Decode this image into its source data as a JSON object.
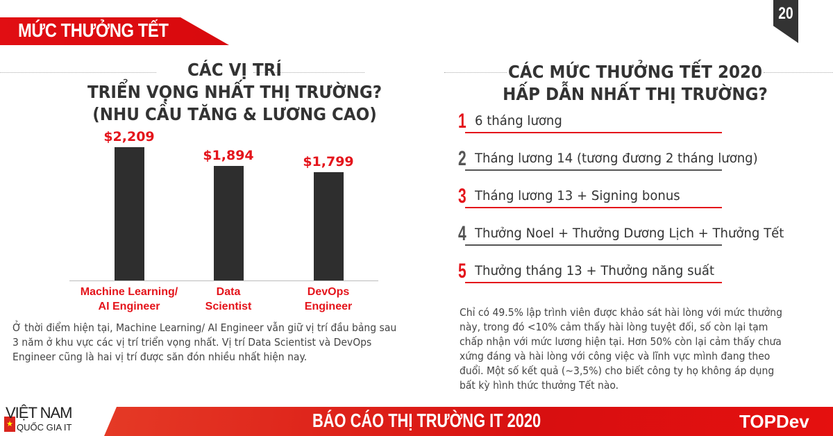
{
  "header": {
    "section_title": "MỨC THƯỞNG TẾT",
    "page_number": "20"
  },
  "left": {
    "title_lines": [
      "CÁC VỊ TRÍ",
      "TRIỂN VỌNG NHẤT THỊ TRƯỜNG?",
      "(NHU CẦU TĂNG & LƯƠNG CAO)"
    ],
    "paragraph": "Ở thời điểm hiện tại, Machine Learning/ AI Engineer vẫn giữ vị trí đầu bảng sau 3 năm ở khu vực các vị trí triển vọng nhất. Vị trí Data Scientist và DevOps Engineer cũng là hai vị trí được săn đón nhiều nhất hiện nay."
  },
  "chart_data": {
    "type": "bar",
    "categories": [
      [
        "Machine Learning/",
        "AI Engineer"
      ],
      [
        "Data",
        "Scientist"
      ],
      [
        "DevOps",
        "Engineer"
      ]
    ],
    "values": [
      2209,
      1894,
      1799
    ],
    "value_labels": [
      "$2,209",
      "$1,894",
      "$1,799"
    ],
    "bar_color": "#2e2e2e",
    "label_color": "#e4141b",
    "grid": false
  },
  "right": {
    "title_lines": [
      "CÁC MỨC THƯỞNG TẾT 2020",
      "HẤP DẪN NHẤT THỊ TRƯỜNG?"
    ],
    "items": [
      {
        "num": "1",
        "text": "6 tháng lương",
        "color": "#e4141b"
      },
      {
        "num": "2",
        "text": "Tháng lương 14 (tương đương 2 tháng lương)",
        "color": "#555555"
      },
      {
        "num": "3",
        "text": "Tháng lương 13 + Signing bonus",
        "color": "#e4141b"
      },
      {
        "num": "4",
        "text": "Thưởng Noel + Thưởng Dương Lịch + Thưởng Tết",
        "color": "#555555"
      },
      {
        "num": "5",
        "text": "Thưởng tháng 13 + Thưởng năng suất",
        "color": "#e4141b"
      }
    ],
    "paragraph": "Chỉ có 49.5% lập trình viên được khảo sát hài lòng với mức thưởng này, trong đó <10% cảm thấy hài lòng tuyệt đối, số còn lại tạm chấp nhận với mức lương hiện tại. Hơn 50% còn lại cảm thấy chưa xứng đáng và hài lòng với công việc và lĩnh vực mình đang theo đuổi. Một số kết quả (~3,5%) cho biết công ty họ không áp dụng bất kỳ hình thức thưởng Tết nào."
  },
  "footer": {
    "logo_line1": "VIỆT NAM",
    "logo_line2": "QUỐC GIA IT",
    "title": "BÁO CÁO THỊ TRƯỜNG IT 2020",
    "brand": "TOPDev"
  }
}
